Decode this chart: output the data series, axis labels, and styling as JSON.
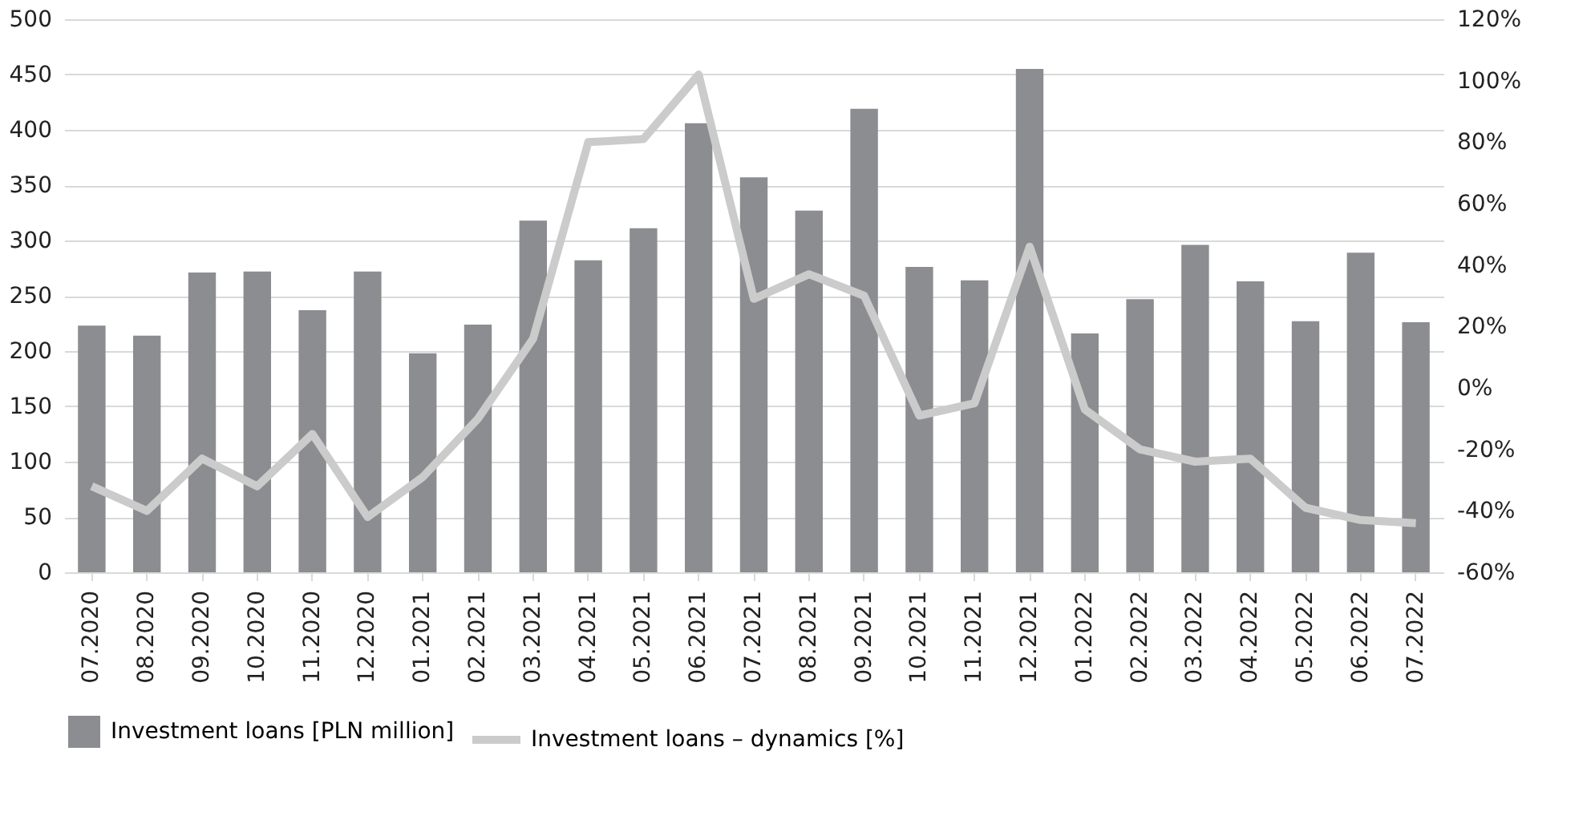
{
  "chart_data": {
    "type": "bar",
    "categories": [
      "07.2020",
      "08.2020",
      "09.2020",
      "10.2020",
      "11.2020",
      "12.2020",
      "01.2021",
      "02.2021",
      "03.2021",
      "04.2021",
      "05.2021",
      "06.2021",
      "07.2021",
      "08.2021",
      "09.2021",
      "10.2021",
      "11.2021",
      "12.2021",
      "01.2022",
      "02.2022",
      "03.2022",
      "04.2022",
      "05.2022",
      "06.2022",
      "07.2022"
    ],
    "series": [
      {
        "name": "Investment loans [PLN million]",
        "color": "#8c8d91",
        "values": [
          223,
          214,
          271,
          272,
          237,
          272,
          198,
          224,
          318,
          282,
          311,
          406,
          357,
          327,
          419,
          276,
          264,
          455,
          216,
          247,
          296,
          263,
          227,
          289,
          226
        ]
      },
      {
        "name": "Investment loans – dynamics [%]",
        "type": "line",
        "axis": "y2",
        "color": "#cbcbcb",
        "values": [
          -32,
          -40,
          -23,
          -32,
          -15,
          -42,
          -29,
          -10,
          16,
          80,
          81,
          102,
          29,
          37,
          30,
          -9,
          -5,
          46,
          -7,
          -20,
          -24,
          -23,
          -39,
          -43,
          -44
        ]
      }
    ],
    "ylim": [
      0,
      500
    ],
    "yticks": [
      0,
      50,
      100,
      150,
      200,
      250,
      300,
      350,
      400,
      450,
      500
    ],
    "y2lim": [
      -60,
      120
    ],
    "y2ticks": [
      {
        "value": -60,
        "label": "-60%"
      },
      {
        "value": -40,
        "label": "-40%"
      },
      {
        "value": -20,
        "label": "-20%"
      },
      {
        "value": 0,
        "label": "0%"
      },
      {
        "value": 20,
        "label": "20%"
      },
      {
        "value": 40,
        "label": "40%"
      },
      {
        "value": 60,
        "label": "60%"
      },
      {
        "value": 80,
        "label": "80%"
      },
      {
        "value": 100,
        "label": "100%"
      },
      {
        "value": 120,
        "label": "120%"
      }
    ],
    "grid": "y",
    "legend": "bottom",
    "line_style": "solid",
    "marker": "none"
  }
}
